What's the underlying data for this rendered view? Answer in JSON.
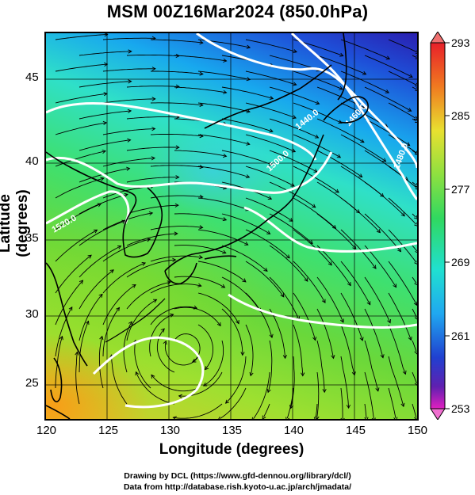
{
  "title": "MSM 00Z16Mar2024 (850.0hPa)",
  "axes": {
    "xlabel": "Longitude (degrees)",
    "ylabel": "Latitude  (degrees)",
    "x_ticks": [
      "120",
      "125",
      "130",
      "135",
      "140",
      "145",
      "150"
    ],
    "y_ticks": [
      "45",
      "40",
      "35",
      "30",
      "25"
    ],
    "x_range": [
      120,
      150
    ],
    "y_range": [
      22.4,
      47.6
    ]
  },
  "colorbar": {
    "labels": [
      "293",
      "285",
      "277",
      "269",
      "261",
      "253"
    ],
    "range": [
      253,
      293
    ]
  },
  "contours": {
    "labels": [
      "1440.0",
      "1460.0",
      "1480.0",
      "1500.0",
      "1520.0"
    ]
  },
  "credits": {
    "line1": "Drawing by DCL (https://www.gfd-dennou.org/library/dcl/)",
    "line2": "Data from http://database.rish.kyoto-u.ac.jp/arch/jmadata/"
  },
  "colors": {
    "cold": "#2a1fb0",
    "cool": "#18a8ee",
    "mid": "#3ee070",
    "warm": "#d8cc2a",
    "contour": "#ffffff",
    "coast": "#000000"
  }
}
